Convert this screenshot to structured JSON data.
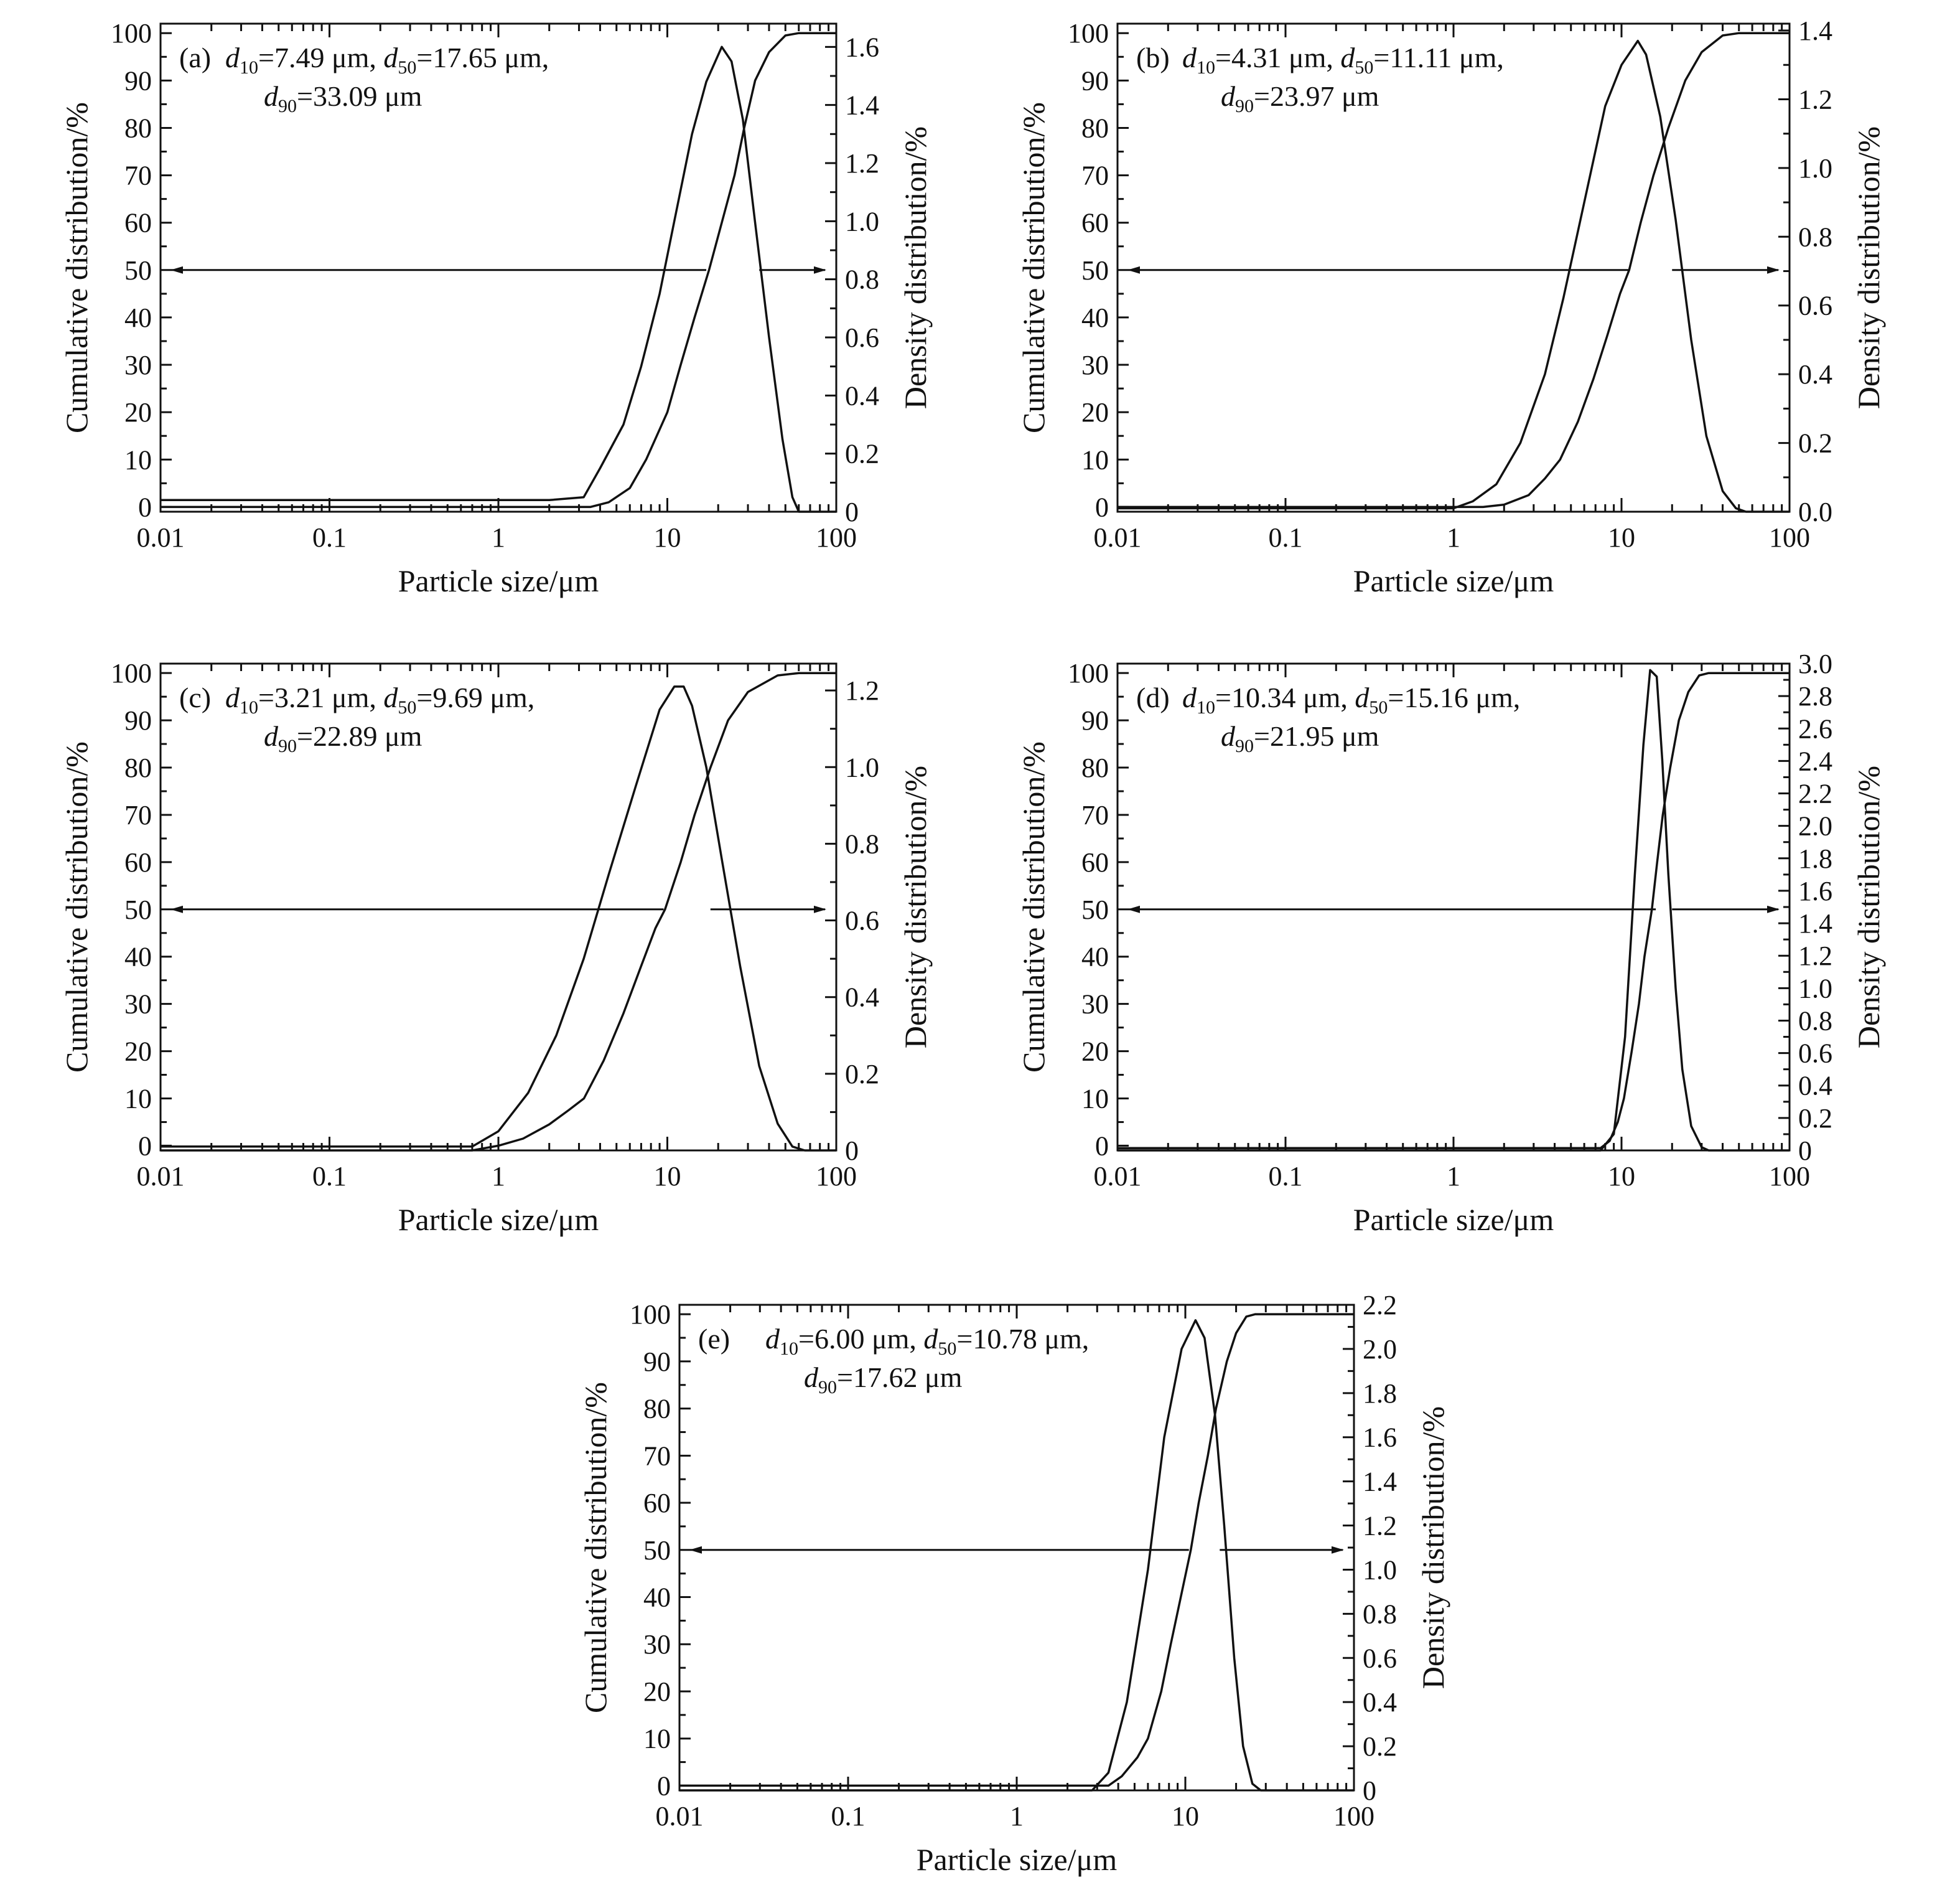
{
  "chart_data": [
    {
      "id": "a",
      "type": "line",
      "panel_label": "(a)",
      "annotation": {
        "line1": [
          {
            "t": "d",
            "s": "i"
          },
          {
            "t": "10",
            "s": "sub"
          },
          {
            "t": "=7.49 μm, ",
            "s": "n"
          },
          {
            "t": "d",
            "s": "i"
          },
          {
            "t": "50",
            "s": "sub"
          },
          {
            "t": "=17.65 μm,",
            "s": "n"
          }
        ],
        "line2": [
          {
            "t": "d",
            "s": "i"
          },
          {
            "t": "90",
            "s": "sub"
          },
          {
            "t": "=33.09 μm",
            "s": "n"
          }
        ]
      },
      "xlabel": "Particle size/μm",
      "ylabel": "Cumulative distribution/%",
      "y2label": "Density distribution/%",
      "xscale": "log",
      "xlim": [
        0.01,
        100
      ],
      "xticks": [
        0.01,
        0.1,
        1,
        10,
        100
      ],
      "xtick_labels": [
        "0.01",
        "0.1",
        "1",
        "10",
        "100"
      ],
      "ylim": [
        -1,
        102
      ],
      "yticks": [
        0,
        10,
        20,
        30,
        40,
        50,
        60,
        70,
        80,
        90,
        100
      ],
      "y2lim": [
        0,
        1.68
      ],
      "y2ticks": [
        0,
        0.2,
        0.4,
        0.6,
        0.8,
        1.0,
        1.2,
        1.4,
        1.6
      ],
      "y2tick_labels": [
        "0",
        "0.2",
        "0.4",
        "0.6",
        "0.8",
        "1.0",
        "1.2",
        "1.4",
        "1.6"
      ],
      "arrow_y": 50,
      "arrow_gap": [
        17,
        35
      ],
      "cumulative": [
        [
          0.01,
          0
        ],
        [
          3.5,
          0
        ],
        [
          4.5,
          1
        ],
        [
          6,
          4
        ],
        [
          7.49,
          10
        ],
        [
          10,
          20
        ],
        [
          12,
          30
        ],
        [
          14.5,
          40
        ],
        [
          17.65,
          50
        ],
        [
          21,
          60
        ],
        [
          25,
          70
        ],
        [
          28.5,
          80
        ],
        [
          33.09,
          90
        ],
        [
          40,
          96
        ],
        [
          50,
          99.5
        ],
        [
          60,
          100
        ],
        [
          100,
          100
        ]
      ],
      "density": [
        [
          0.01,
          0.04
        ],
        [
          2,
          0.04
        ],
        [
          3.2,
          0.05
        ],
        [
          4,
          0.15
        ],
        [
          5.5,
          0.3
        ],
        [
          7,
          0.5
        ],
        [
          9,
          0.75
        ],
        [
          11,
          1.0
        ],
        [
          14,
          1.3
        ],
        [
          17,
          1.48
        ],
        [
          21,
          1.6
        ],
        [
          24,
          1.55
        ],
        [
          28,
          1.35
        ],
        [
          33,
          1.0
        ],
        [
          40,
          0.6
        ],
        [
          48,
          0.25
        ],
        [
          55,
          0.05
        ],
        [
          60,
          0.0
        ],
        [
          100,
          0.0
        ]
      ]
    },
    {
      "id": "b",
      "type": "line",
      "panel_label": "(b)",
      "annotation": {
        "line1": [
          {
            "t": "d",
            "s": "i"
          },
          {
            "t": "10",
            "s": "sub"
          },
          {
            "t": "=4.31 μm, ",
            "s": "n"
          },
          {
            "t": "d",
            "s": "i"
          },
          {
            "t": "50",
            "s": "sub"
          },
          {
            "t": "=11.11 μm,",
            "s": "n"
          }
        ],
        "line2": [
          {
            "t": "d",
            "s": "i"
          },
          {
            "t": "90",
            "s": "sub"
          },
          {
            "t": "=23.97 μm",
            "s": "n"
          }
        ]
      },
      "xlabel": "Particle size/μm",
      "ylabel": "Cumulative distribution/%",
      "y2label": "Density distribution/%",
      "xscale": "log",
      "xlim": [
        0.01,
        100
      ],
      "xticks": [
        0.01,
        0.1,
        1,
        10,
        100
      ],
      "xtick_labels": [
        "0.01",
        "0.1",
        "1",
        "10",
        "100"
      ],
      "ylim": [
        -1,
        102
      ],
      "yticks": [
        0,
        10,
        20,
        30,
        40,
        50,
        60,
        70,
        80,
        90,
        100
      ],
      "y2lim": [
        0,
        1.42
      ],
      "y2ticks": [
        0,
        0.2,
        0.4,
        0.6,
        0.8,
        1.0,
        1.2,
        1.4
      ],
      "y2tick_labels": [
        "0.0",
        "0.2",
        "0.4",
        "0.6",
        "0.8",
        "1.0",
        "1.2",
        "1.4"
      ],
      "arrow_y": 50,
      "arrow_gap": [
        11,
        20
      ],
      "cumulative": [
        [
          0.01,
          0
        ],
        [
          1.5,
          0
        ],
        [
          2,
          0.5
        ],
        [
          2.8,
          2.5
        ],
        [
          3.5,
          6
        ],
        [
          4.31,
          10
        ],
        [
          5.5,
          18
        ],
        [
          6.8,
          27
        ],
        [
          8.2,
          36
        ],
        [
          9.8,
          45
        ],
        [
          11.11,
          50
        ],
        [
          13,
          60
        ],
        [
          15.5,
          70
        ],
        [
          19,
          80
        ],
        [
          23.97,
          90
        ],
        [
          30,
          96
        ],
        [
          40,
          99.5
        ],
        [
          50,
          100
        ],
        [
          100,
          100
        ]
      ],
      "density": [
        [
          0.01,
          0.01
        ],
        [
          1.0,
          0.01
        ],
        [
          1.3,
          0.03
        ],
        [
          1.8,
          0.08
        ],
        [
          2.5,
          0.2
        ],
        [
          3.5,
          0.4
        ],
        [
          4.5,
          0.62
        ],
        [
          6,
          0.9
        ],
        [
          8,
          1.18
        ],
        [
          10,
          1.3
        ],
        [
          12.5,
          1.37
        ],
        [
          14,
          1.33
        ],
        [
          17,
          1.15
        ],
        [
          21,
          0.85
        ],
        [
          26,
          0.5
        ],
        [
          32,
          0.22
        ],
        [
          40,
          0.06
        ],
        [
          48,
          0.01
        ],
        [
          55,
          0.0
        ],
        [
          100,
          0.0
        ]
      ]
    },
    {
      "id": "c",
      "type": "line",
      "panel_label": "(c)",
      "annotation": {
        "line1": [
          {
            "t": "d",
            "s": "i"
          },
          {
            "t": "10",
            "s": "sub"
          },
          {
            "t": "=3.21 μm, ",
            "s": "n"
          },
          {
            "t": "d",
            "s": "i"
          },
          {
            "t": "50",
            "s": "sub"
          },
          {
            "t": "=9.69 μm,",
            "s": "n"
          }
        ],
        "line2": [
          {
            "t": "d",
            "s": "i"
          },
          {
            "t": "90",
            "s": "sub"
          },
          {
            "t": "=22.89 μm",
            "s": "n"
          }
        ]
      },
      "xlabel": "Particle size/μm",
      "ylabel": "Cumulative distribution/%",
      "y2label": "Density distribution/%",
      "xscale": "log",
      "xlim": [
        0.01,
        100
      ],
      "xticks": [
        0.01,
        0.1,
        1,
        10,
        100
      ],
      "xtick_labels": [
        "0.01",
        "0.1",
        "1",
        "10",
        "100"
      ],
      "ylim": [
        -1,
        102
      ],
      "yticks": [
        0,
        10,
        20,
        30,
        40,
        50,
        60,
        70,
        80,
        90,
        100
      ],
      "y2lim": [
        0,
        1.27
      ],
      "y2ticks": [
        0,
        0.2,
        0.4,
        0.6,
        0.8,
        1.0,
        1.2
      ],
      "y2tick_labels": [
        "0",
        "0.2",
        "0.4",
        "0.6",
        "0.8",
        "1.0",
        "1.2"
      ],
      "arrow_y": 50,
      "arrow_gap": [
        9.5,
        18
      ],
      "cumulative": [
        [
          0.01,
          -1
        ],
        [
          0.7,
          -1
        ],
        [
          1.0,
          0
        ],
        [
          1.4,
          1.5
        ],
        [
          2,
          4.5
        ],
        [
          2.6,
          7.5
        ],
        [
          3.21,
          10
        ],
        [
          4.2,
          18
        ],
        [
          5.5,
          28
        ],
        [
          7,
          38
        ],
        [
          8.5,
          46
        ],
        [
          9.69,
          50
        ],
        [
          12,
          60
        ],
        [
          14.5,
          70
        ],
        [
          18,
          80
        ],
        [
          22.89,
          90
        ],
        [
          30,
          96
        ],
        [
          45,
          99.5
        ],
        [
          60,
          100
        ],
        [
          100,
          100
        ]
      ],
      "density": [
        [
          0.01,
          0.01
        ],
        [
          0.7,
          0.01
        ],
        [
          1.0,
          0.05
        ],
        [
          1.5,
          0.15
        ],
        [
          2.2,
          0.3
        ],
        [
          3.2,
          0.5
        ],
        [
          4.5,
          0.72
        ],
        [
          6.5,
          0.95
        ],
        [
          9,
          1.15
        ],
        [
          11,
          1.21
        ],
        [
          12.5,
          1.21
        ],
        [
          14,
          1.16
        ],
        [
          17,
          1.0
        ],
        [
          21,
          0.76
        ],
        [
          27,
          0.48
        ],
        [
          35,
          0.22
        ],
        [
          45,
          0.07
        ],
        [
          55,
          0.01
        ],
        [
          65,
          0.0
        ],
        [
          100,
          0.0
        ]
      ]
    },
    {
      "id": "d",
      "type": "line",
      "panel_label": "(d)",
      "annotation": {
        "line1": [
          {
            "t": "d",
            "s": "i"
          },
          {
            "t": "10",
            "s": "sub"
          },
          {
            "t": "=10.34 μm, ",
            "s": "n"
          },
          {
            "t": "d",
            "s": "i"
          },
          {
            "t": "50",
            "s": "sub"
          },
          {
            "t": "=15.16 μm,",
            "s": "n"
          }
        ],
        "line2": [
          {
            "t": "d",
            "s": "i"
          },
          {
            "t": "90",
            "s": "sub"
          },
          {
            "t": "=21.95 μm",
            "s": "n"
          }
        ]
      },
      "xlabel": "Particle size/μm",
      "ylabel": "Cumulative distribution/%",
      "y2label": "Density distribution/%",
      "xscale": "log",
      "xlim": [
        0.01,
        100
      ],
      "xticks": [
        0.01,
        0.1,
        1,
        10,
        100
      ],
      "xtick_labels": [
        "0.01",
        "0.1",
        "1",
        "10",
        "100"
      ],
      "ylim": [
        -1,
        102
      ],
      "yticks": [
        0,
        10,
        20,
        30,
        40,
        50,
        60,
        70,
        80,
        90,
        100
      ],
      "y2lim": [
        0,
        3.0
      ],
      "y2ticks": [
        0,
        0.2,
        0.4,
        0.6,
        0.8,
        1.0,
        1.2,
        1.4,
        1.6,
        1.8,
        2.0,
        2.2,
        2.4,
        2.6,
        2.8,
        3.0
      ],
      "y2tick_labels": [
        "0",
        "0.2",
        "0.4",
        "0.6",
        "0.8",
        "1.0",
        "1.2",
        "1.4",
        "1.6",
        "1.8",
        "2.0",
        "2.2",
        "2.4",
        "2.6",
        "2.8",
        "3.0"
      ],
      "arrow_y": 50,
      "arrow_gap": [
        16,
        20
      ],
      "cumulative": [
        [
          0.01,
          -0.5
        ],
        [
          7.5,
          -0.5
        ],
        [
          8.5,
          1
        ],
        [
          9.5,
          5
        ],
        [
          10.34,
          10
        ],
        [
          11.5,
          20
        ],
        [
          12.7,
          30
        ],
        [
          13.7,
          40
        ],
        [
          15.16,
          50
        ],
        [
          16.3,
          60
        ],
        [
          17.6,
          70
        ],
        [
          19.5,
          80
        ],
        [
          21.95,
          90
        ],
        [
          25,
          96
        ],
        [
          29,
          99.5
        ],
        [
          33,
          100
        ],
        [
          100,
          100
        ]
      ],
      "density": [
        [
          0.01,
          0.0
        ],
        [
          7.5,
          0.0
        ],
        [
          9,
          0.1
        ],
        [
          10.5,
          0.7
        ],
        [
          12,
          1.7
        ],
        [
          13.5,
          2.5
        ],
        [
          14.8,
          2.96
        ],
        [
          16.2,
          2.92
        ],
        [
          17.5,
          2.4
        ],
        [
          19,
          1.7
        ],
        [
          21,
          1.0
        ],
        [
          23,
          0.5
        ],
        [
          26,
          0.15
        ],
        [
          30,
          0.02
        ],
        [
          33,
          0.0
        ],
        [
          100,
          0.0
        ]
      ]
    },
    {
      "id": "e",
      "type": "line",
      "panel_label": "(e)",
      "annotation": {
        "line1": [
          {
            "t": "d",
            "s": "i"
          },
          {
            "t": "10",
            "s": "sub"
          },
          {
            "t": "=6.00 μm, ",
            "s": "n"
          },
          {
            "t": "d",
            "s": "i"
          },
          {
            "t": "50",
            "s": "sub"
          },
          {
            "t": "=10.78 μm,",
            "s": "n"
          }
        ],
        "line2": [
          {
            "t": "d",
            "s": "i"
          },
          {
            "t": "90",
            "s": "sub"
          },
          {
            "t": "=17.62 μm",
            "s": "n"
          }
        ]
      },
      "xlabel": "Particle size/μm",
      "ylabel": "Cumulative distribution/%",
      "y2label": "Density distribution/%",
      "xscale": "log",
      "xlim": [
        0.01,
        100
      ],
      "xticks": [
        0.01,
        0.1,
        1,
        10,
        100
      ],
      "xtick_labels": [
        "0.01",
        "0.1",
        "1",
        "10",
        "100"
      ],
      "ylim": [
        -1,
        102
      ],
      "yticks": [
        0,
        10,
        20,
        30,
        40,
        50,
        60,
        70,
        80,
        90,
        100
      ],
      "y2lim": [
        0,
        2.2
      ],
      "y2ticks": [
        0,
        0.2,
        0.4,
        0.6,
        0.8,
        1.0,
        1.2,
        1.4,
        1.6,
        1.8,
        2.0,
        2.2
      ],
      "y2tick_labels": [
        "0",
        "0.2",
        "0.4",
        "0.6",
        "0.8",
        "1.0",
        "1.2",
        "1.4",
        "1.6",
        "1.8",
        "2.0",
        "2.2"
      ],
      "arrow_y": 50,
      "arrow_gap": [
        10.5,
        16
      ],
      "cumulative": [
        [
          0.01,
          0
        ],
        [
          3.5,
          0
        ],
        [
          4.2,
          2
        ],
        [
          5.2,
          6
        ],
        [
          6.0,
          10
        ],
        [
          7.2,
          20
        ],
        [
          8.2,
          30
        ],
        [
          9.4,
          40
        ],
        [
          10.78,
          50
        ],
        [
          12,
          60
        ],
        [
          13.6,
          70
        ],
        [
          15.2,
          80
        ],
        [
          17.62,
          90
        ],
        [
          20,
          96
        ],
        [
          23,
          99.5
        ],
        [
          26,
          100
        ],
        [
          100,
          100
        ]
      ],
      "density": [
        [
          0.01,
          0.0
        ],
        [
          2.8,
          0.0
        ],
        [
          3.5,
          0.08
        ],
        [
          4.5,
          0.4
        ],
        [
          6,
          1.0
        ],
        [
          7.5,
          1.6
        ],
        [
          9.5,
          2.0
        ],
        [
          11.5,
          2.13
        ],
        [
          13,
          2.05
        ],
        [
          15,
          1.7
        ],
        [
          17,
          1.2
        ],
        [
          19.5,
          0.6
        ],
        [
          22,
          0.2
        ],
        [
          25,
          0.03
        ],
        [
          28,
          0.0
        ],
        [
          100,
          0.0
        ]
      ]
    }
  ]
}
